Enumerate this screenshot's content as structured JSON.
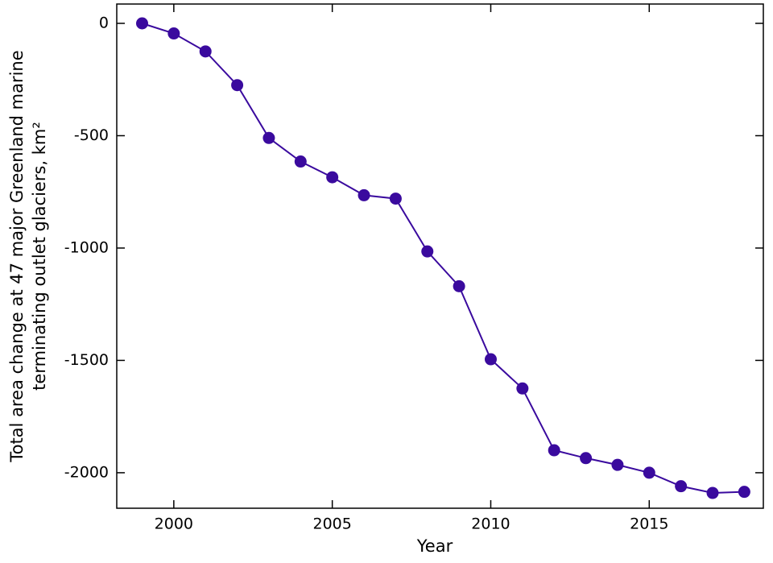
{
  "chart_data": {
    "type": "line",
    "xlabel": "Year",
    "ylabel": [
      "Total area change at 47 major Greenland marine",
      "terminating outlet glaciers, km²"
    ],
    "x": [
      1999,
      2000,
      2001,
      2002,
      2003,
      2004,
      2005,
      2006,
      2007,
      2008,
      2009,
      2010,
      2011,
      2012,
      2013,
      2014,
      2015,
      2016,
      2017,
      2018
    ],
    "series": [
      {
        "color": "#3a0a9e",
        "values": [
          0,
          -45,
          -125,
          -275,
          -510,
          -615,
          -685,
          -765,
          -780,
          -1015,
          -1170,
          -1495,
          -1625,
          -1900,
          -1935,
          -1965,
          -2000,
          -2060,
          -2090,
          -2085
        ]
      }
    ],
    "xlim": [
      1998.2,
      2018.6
    ],
    "xticks": [
      2000,
      2005,
      2010,
      2015
    ],
    "ylim": [
      -2158,
      86
    ],
    "yticks": [
      0,
      -500,
      -1000,
      -1500,
      -2000
    ],
    "grid": false
  }
}
